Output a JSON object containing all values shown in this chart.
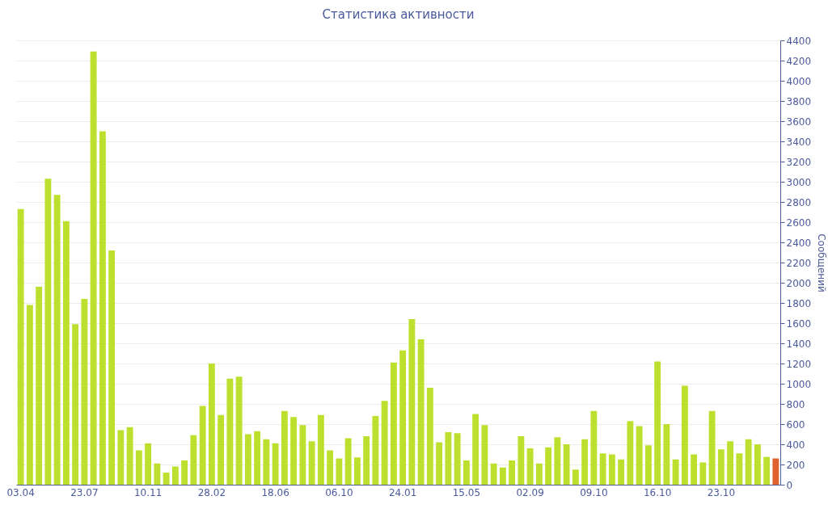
{
  "chart_data": {
    "type": "bar",
    "title": "Статистика активности",
    "ylabel": "Сообщений",
    "categories": [
      "03.04",
      null,
      null,
      null,
      null,
      null,
      null,
      "23.07",
      null,
      null,
      null,
      null,
      null,
      null,
      "10.11",
      null,
      null,
      null,
      null,
      null,
      null,
      "28.02",
      null,
      null,
      null,
      null,
      null,
      null,
      "18.06",
      null,
      null,
      null,
      null,
      null,
      null,
      "06.10",
      null,
      null,
      null,
      null,
      null,
      null,
      "24.01",
      null,
      null,
      null,
      null,
      null,
      null,
      "15.05",
      null,
      null,
      null,
      null,
      null,
      null,
      "02.09",
      null,
      null,
      null,
      null,
      null,
      null,
      "09.10",
      null,
      null,
      null,
      null,
      null,
      null,
      "16.10",
      null,
      null,
      null,
      null,
      null,
      null,
      "23.10",
      null,
      null,
      null,
      null,
      null,
      null
    ],
    "values": [
      2730,
      1780,
      1960,
      3030,
      2870,
      2610,
      1590,
      1840,
      4290,
      3500,
      2320,
      540,
      570,
      340,
      410,
      210,
      120,
      180,
      240,
      490,
      780,
      1200,
      690,
      1050,
      1070,
      500,
      530,
      450,
      410,
      730,
      670,
      590,
      430,
      690,
      340,
      260,
      460,
      270,
      480,
      680,
      830,
      1210,
      1330,
      1640,
      1440,
      960,
      420,
      520,
      510,
      240,
      700,
      590,
      210,
      170,
      240,
      480,
      360,
      210,
      370,
      470,
      400,
      150,
      450,
      730,
      310,
      300,
      250,
      630,
      580,
      390,
      1220,
      600,
      250,
      980,
      300,
      220,
      730,
      350,
      430,
      310,
      450,
      400,
      275,
      260
    ],
    "colors": [
      "#bde02e",
      "#bde02e",
      "#bde02e",
      "#bde02e",
      "#bde02e",
      "#bde02e",
      "#bde02e",
      "#bde02e",
      "#bde02e",
      "#bde02e",
      "#bde02e",
      "#bde02e",
      "#bde02e",
      "#bde02e",
      "#bde02e",
      "#bde02e",
      "#bde02e",
      "#bde02e",
      "#bde02e",
      "#bde02e",
      "#bde02e",
      "#bde02e",
      "#bde02e",
      "#bde02e",
      "#bde02e",
      "#bde02e",
      "#bde02e",
      "#bde02e",
      "#bde02e",
      "#bde02e",
      "#bde02e",
      "#bde02e",
      "#bde02e",
      "#bde02e",
      "#bde02e",
      "#bde02e",
      "#bde02e",
      "#bde02e",
      "#bde02e",
      "#bde02e",
      "#bde02e",
      "#bde02e",
      "#bde02e",
      "#bde02e",
      "#bde02e",
      "#bde02e",
      "#bde02e",
      "#bde02e",
      "#bde02e",
      "#bde02e",
      "#bde02e",
      "#bde02e",
      "#bde02e",
      "#bde02e",
      "#bde02e",
      "#bde02e",
      "#bde02e",
      "#bde02e",
      "#bde02e",
      "#bde02e",
      "#bde02e",
      "#bde02e",
      "#bde02e",
      "#bde02e",
      "#bde02e",
      "#bde02e",
      "#bde02e",
      "#bde02e",
      "#bde02e",
      "#bde02e",
      "#bde02e",
      "#bde02e",
      "#bde02e",
      "#bde02e",
      "#bde02e",
      "#bde02e",
      "#bde02e",
      "#bde02e",
      "#bde02e",
      "#bde02e",
      "#bde02e",
      "#bde02e",
      "#bde02e",
      "#e0622e"
    ],
    "ylim": [
      0,
      4400
    ],
    "yticks": [
      0,
      200,
      400,
      600,
      800,
      1000,
      1200,
      1400,
      1600,
      1800,
      2000,
      2200,
      2400,
      2600,
      2800,
      3000,
      3200,
      3400,
      3600,
      3800,
      4000,
      4200,
      4400
    ],
    "grid": "y"
  }
}
